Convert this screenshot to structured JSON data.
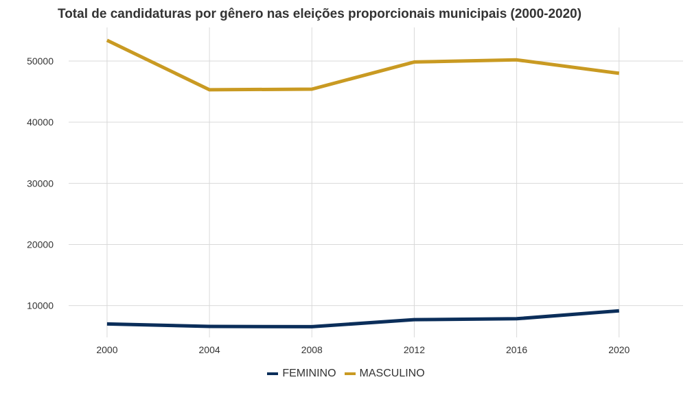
{
  "chart_data": {
    "type": "line",
    "title": "Total de candidaturas por gênero nas eleições proporcionais municipais (2000-2020)",
    "xlabel": "",
    "ylabel": "",
    "x": [
      2000,
      2004,
      2008,
      2012,
      2016,
      2020
    ],
    "x_ticks": [
      "2000",
      "2004",
      "2008",
      "2012",
      "2016",
      "2020"
    ],
    "y_ticks": [
      "10000",
      "20000",
      "30000",
      "40000",
      "50000"
    ],
    "ylim": [
      4800,
      55500
    ],
    "grid": true,
    "legend_position": "bottom",
    "series": [
      {
        "name": "FEMININO",
        "color": "#0b2e5a",
        "values": [
          7000,
          6600,
          6550,
          7700,
          7850,
          9150
        ]
      },
      {
        "name": "MASCULINO",
        "color": "#c99a22",
        "values": [
          53400,
          45300,
          45400,
          49850,
          50200,
          48000
        ]
      }
    ]
  }
}
